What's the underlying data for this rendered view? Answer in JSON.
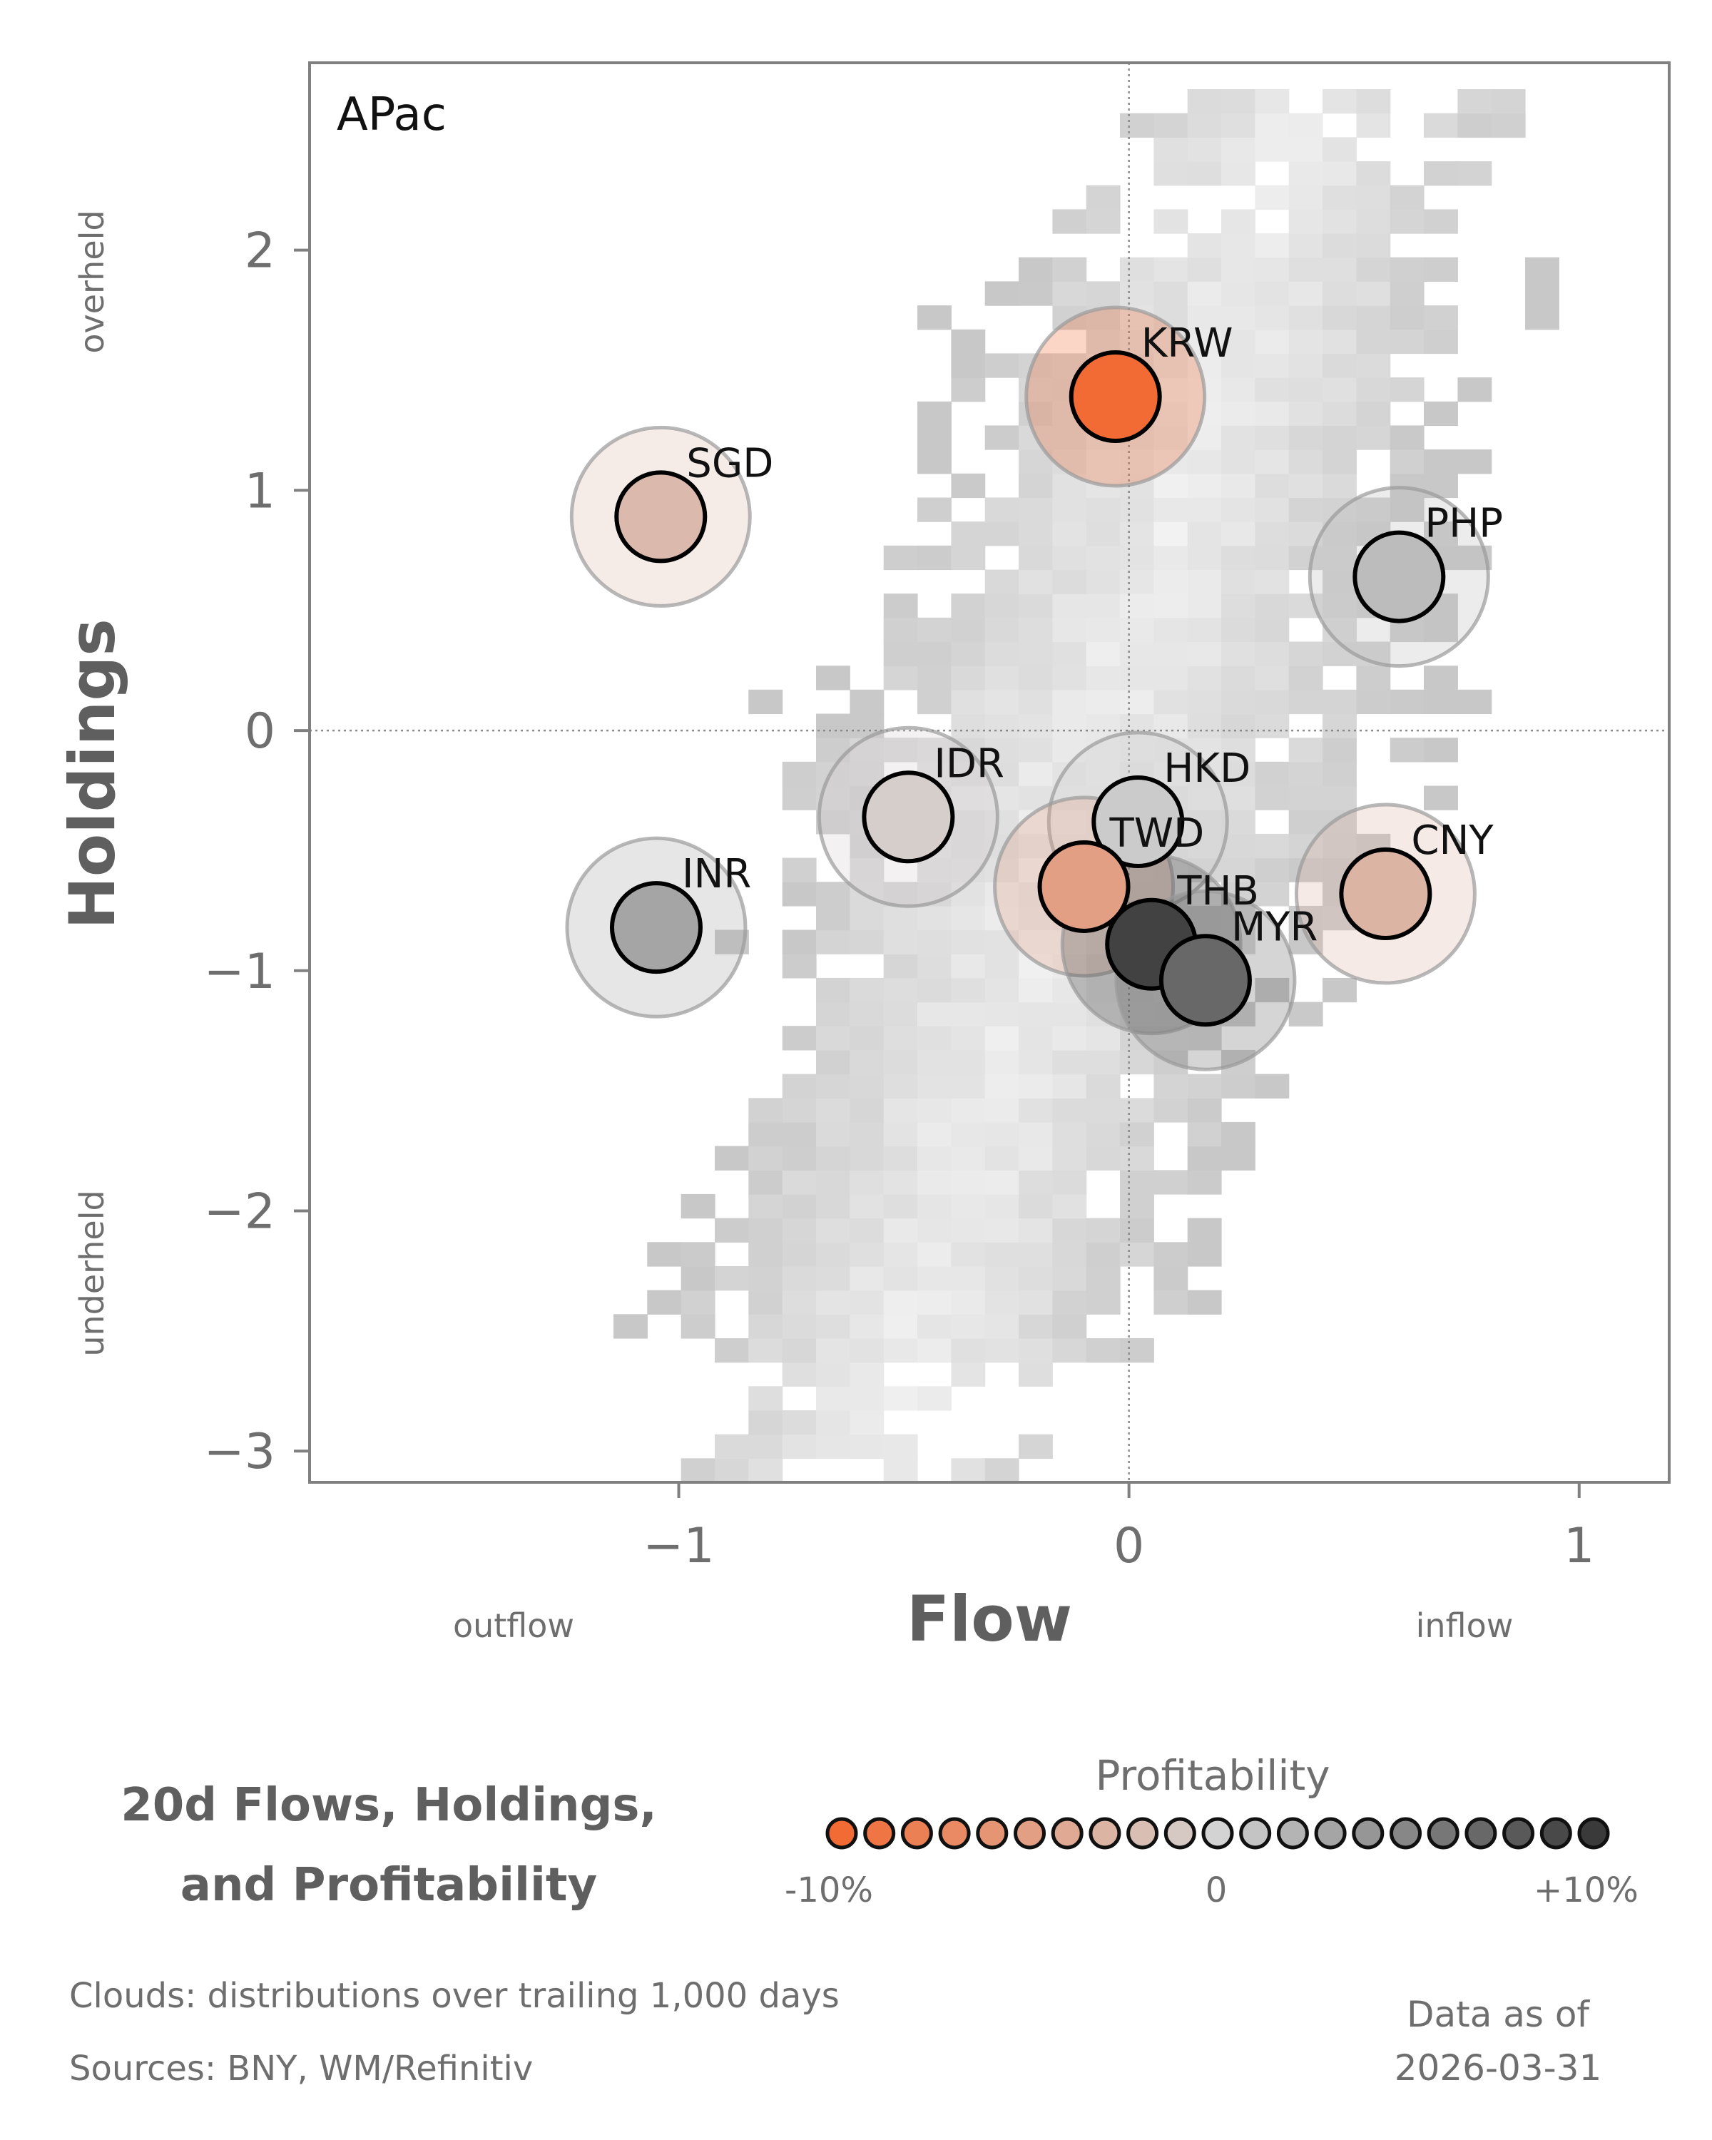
{
  "chart_data": {
    "type": "scatter",
    "title": "20d Flows, Holdings, and Profitability",
    "title_lines": [
      "20d Flows, Holdings,",
      "and Profitability"
    ],
    "panel_label": "APac",
    "xlabel": "Flow",
    "ylabel": "Holdings",
    "x_ticks": [
      "−1",
      "0",
      "1"
    ],
    "y_ticks": [
      "2",
      "1",
      "0",
      "−1",
      "−2",
      "−3"
    ],
    "x_notes": {
      "low": "outflow",
      "high": "inflow"
    },
    "y_notes": {
      "high": "overheld",
      "low": "underheld"
    },
    "xlim": [
      -1.82,
      1.2
    ],
    "ylim": [
      -3.13,
      2.78
    ],
    "reference_lines": {
      "x": 0,
      "y": 0,
      "style": "dotted"
    },
    "grid": false,
    "points": [
      {
        "label": "KRW",
        "flow": -0.03,
        "holdings": 1.39,
        "profitability": -10
      },
      {
        "label": "SGD",
        "flow": -1.04,
        "holdings": 0.89,
        "profitability": -2.5
      },
      {
        "label": "PHP",
        "flow": 0.6,
        "holdings": 0.64,
        "profitability": 1.5
      },
      {
        "label": "IDR",
        "flow": -0.49,
        "holdings": -0.36,
        "profitability": -0.5
      },
      {
        "label": "HKD",
        "flow": 0.02,
        "holdings": -0.38,
        "profitability": 0.5
      },
      {
        "label": "TWD",
        "flow": -0.1,
        "holdings": -0.65,
        "profitability": -5
      },
      {
        "label": "CNY",
        "flow": 0.57,
        "holdings": -0.68,
        "profitability": -3
      },
      {
        "label": "INR",
        "flow": -1.05,
        "holdings": -0.82,
        "profitability": 3
      },
      {
        "label": "THB",
        "flow": 0.05,
        "holdings": -0.89,
        "profitability": 9.5
      },
      {
        "label": "MYR",
        "flow": 0.17,
        "holdings": -1.04,
        "profitability": 7
      }
    ],
    "background": "2D histogram clouds (distributions over trailing 1,000 days)",
    "colorbar": {
      "title": "Profitability",
      "min_label": "-10%",
      "mid_label": "0",
      "max_label": "+10%",
      "range": [
        -10,
        10
      ],
      "steps": 21,
      "low_color": "#f26b35",
      "mid_color": "#d3d3d3",
      "high_color": "#3a3a3a"
    }
  },
  "footer": {
    "clouds_note": "Clouds:  distributions over trailing 1,000 days",
    "sources_note": "Sources:  BNY, WM/Refinitiv",
    "asof_label": "Data as of",
    "asof_date": "2026-03-31"
  }
}
